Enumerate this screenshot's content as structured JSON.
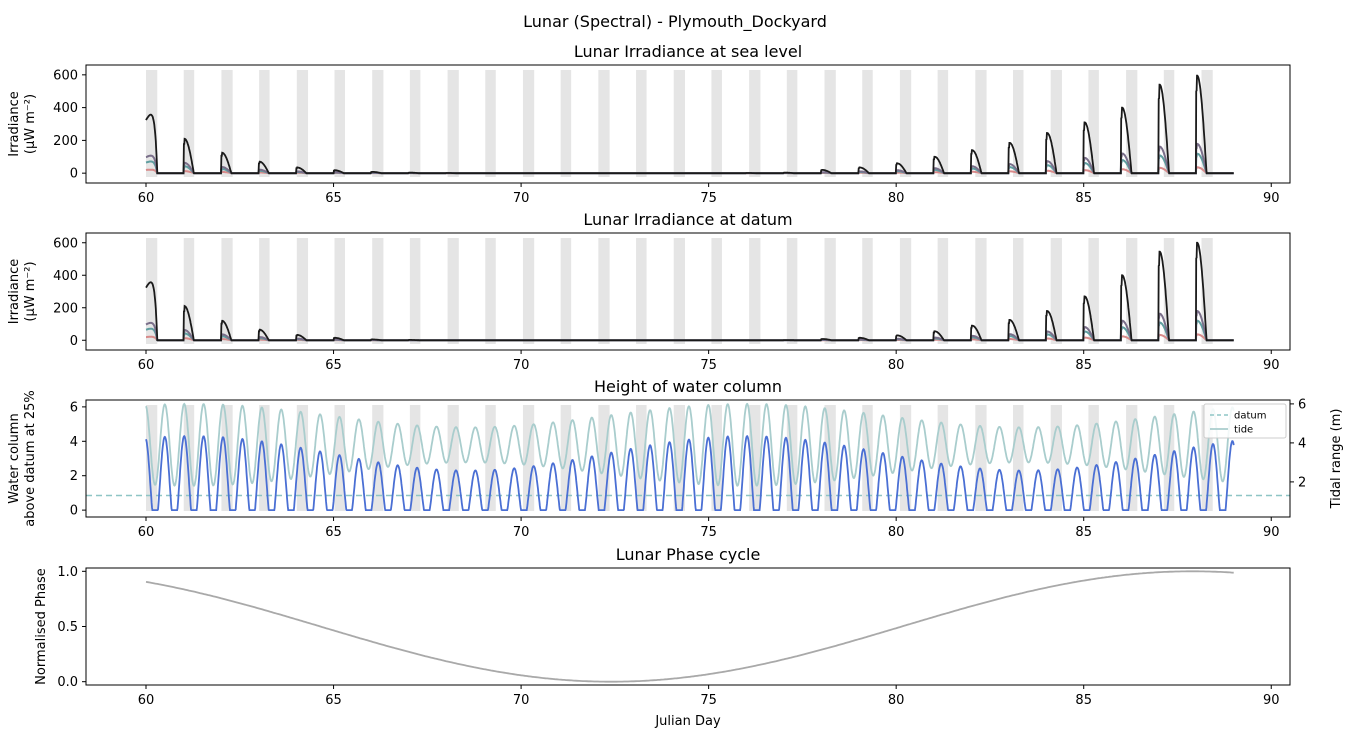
{
  "figure": {
    "suptitle": "Lunar (Spectral) - Plymouth_Dockyard"
  },
  "chart_data": [
    {
      "type": "line",
      "title": "Lunar Irradiance at sea level",
      "ylabel_line1": "Irradiance",
      "ylabel_line2": "(µW m⁻²)",
      "xlabel": "",
      "xlim": [
        58.4,
        90.5
      ],
      "ylim": [
        -60,
        660
      ],
      "xticks": [
        60,
        65,
        70,
        75,
        80,
        85,
        90
      ],
      "yticks": [
        0,
        200,
        400,
        600
      ],
      "night_band_color": "#e5e5e5",
      "series": [
        {
          "color": "#1a1a1a",
          "role": "total",
          "peaks": [
            [
              60.15,
              360
            ],
            [
              61.15,
              210
            ],
            [
              62.15,
              125
            ],
            [
              63.15,
              70
            ],
            [
              64.15,
              35
            ],
            [
              65.15,
              18
            ],
            [
              66.15,
              8
            ],
            [
              67.15,
              3
            ],
            [
              68.15,
              1
            ],
            [
              69.15,
              0
            ],
            [
              70.15,
              0
            ],
            [
              71.15,
              0
            ],
            [
              72.15,
              0
            ],
            [
              73.15,
              0
            ],
            [
              74.15,
              0
            ],
            [
              75.15,
              0
            ],
            [
              76.15,
              1
            ],
            [
              77.15,
              3
            ],
            [
              78.15,
              20
            ],
            [
              79.15,
              35
            ],
            [
              80.15,
              60
            ],
            [
              81.15,
              100
            ],
            [
              82.15,
              140
            ],
            [
              83.15,
              185
            ],
            [
              84.15,
              245
            ],
            [
              85.15,
              310
            ],
            [
              86.15,
              400
            ],
            [
              87.15,
              540
            ],
            [
              88.15,
              595
            ]
          ]
        },
        {
          "color": "#7a6f8a",
          "role": "component-a",
          "scale": 0.3
        },
        {
          "color": "#5f9ea0",
          "role": "component-b",
          "scale": 0.2
        },
        {
          "color": "#d88a8a",
          "role": "component-c",
          "scale": 0.06
        }
      ]
    },
    {
      "type": "line",
      "title": "Lunar Irradiance at datum",
      "ylabel_line1": "Irradiance",
      "ylabel_line2": "(µW m⁻²)",
      "xlabel": "",
      "xlim": [
        58.4,
        90.5
      ],
      "ylim": [
        -60,
        660
      ],
      "xticks": [
        60,
        65,
        70,
        75,
        80,
        85,
        90
      ],
      "yticks": [
        0,
        200,
        400,
        600
      ],
      "series": [
        {
          "color": "#1a1a1a",
          "role": "total",
          "peaks": [
            [
              60.15,
              360
            ],
            [
              61.15,
              210
            ],
            [
              62.15,
              120
            ],
            [
              63.15,
              65
            ],
            [
              64.15,
              33
            ],
            [
              65.15,
              15
            ],
            [
              66.15,
              5
            ],
            [
              67.15,
              2
            ],
            [
              68.15,
              0
            ],
            [
              69.15,
              0
            ],
            [
              70.15,
              0
            ],
            [
              71.15,
              0
            ],
            [
              72.15,
              0
            ],
            [
              73.15,
              0
            ],
            [
              74.15,
              0
            ],
            [
              75.15,
              0
            ],
            [
              76.15,
              0
            ],
            [
              77.15,
              1
            ],
            [
              78.15,
              8
            ],
            [
              79.15,
              15
            ],
            [
              80.15,
              30
            ],
            [
              81.15,
              55
            ],
            [
              82.15,
              90
            ],
            [
              83.15,
              125
            ],
            [
              84.15,
              180
            ],
            [
              85.15,
              270
            ],
            [
              86.15,
              400
            ],
            [
              87.15,
              545
            ],
            [
              88.15,
              600
            ]
          ]
        },
        {
          "color": "#7a6f8a",
          "role": "component-a",
          "scale": 0.3
        },
        {
          "color": "#5f9ea0",
          "role": "component-b",
          "scale": 0.2
        },
        {
          "color": "#d88a8a",
          "role": "component-c",
          "scale": 0.06
        }
      ]
    },
    {
      "type": "line",
      "title": "Height of water column",
      "ylabel_line1": "Water column",
      "ylabel_line2": "above datum at 25%",
      "y2label": "Tidal range (m)",
      "xlabel": "",
      "xlim": [
        58.4,
        90.5
      ],
      "ylim": [
        -0.4,
        6.4
      ],
      "y2lim": [
        0.2,
        6.2
      ],
      "xticks": [
        60,
        65,
        70,
        75,
        80,
        85,
        90
      ],
      "yticks": [
        0,
        2,
        4,
        6
      ],
      "y2ticks": [
        2,
        4,
        6
      ],
      "legend_position": "top-right",
      "series": [
        {
          "name": "datum",
          "color": "#8ec5c5",
          "style": "dashed",
          "axis": "right",
          "value": 1.3
        },
        {
          "name": "tide",
          "color": "#a9cdcd",
          "axis": "right",
          "period_days": 0.5175,
          "mean": 3.9,
          "amp_max": 2.1,
          "amp_min": 0.9
        },
        {
          "color": "#4a6fd4",
          "role": "water-column",
          "axis": "left",
          "period_days": 0.5175,
          "peak_max": 4.3,
          "peak_min": 2.3
        }
      ]
    },
    {
      "type": "line",
      "title": "Lunar Phase cycle",
      "ylabel_line1": "Normalised Phase",
      "ylabel_line2": "",
      "xlabel": "Julian Day",
      "xlim": [
        58.4,
        90.5
      ],
      "ylim": [
        -0.03,
        1.03
      ],
      "xticks": [
        60,
        65,
        70,
        75,
        80,
        85,
        90
      ],
      "yticks": [
        0.0,
        0.5,
        1.0
      ],
      "ytick_labels": [
        "0.0",
        "0.5",
        "1.0"
      ],
      "series": [
        {
          "color": "#a9a9a9",
          "role": "phase",
          "points": [
            [
              60,
              0.96
            ],
            [
              62,
              0.86
            ],
            [
              64,
              0.65
            ],
            [
              66,
              0.4
            ],
            [
              68,
              0.19
            ],
            [
              70,
              0.06
            ],
            [
              72,
              0.0
            ],
            [
              74,
              0.04
            ],
            [
              76,
              0.14
            ],
            [
              78,
              0.3
            ],
            [
              80,
              0.48
            ],
            [
              82,
              0.66
            ],
            [
              84,
              0.82
            ],
            [
              86,
              0.94
            ],
            [
              88,
              1.0
            ],
            [
              89,
              0.98
            ]
          ]
        }
      ]
    }
  ]
}
